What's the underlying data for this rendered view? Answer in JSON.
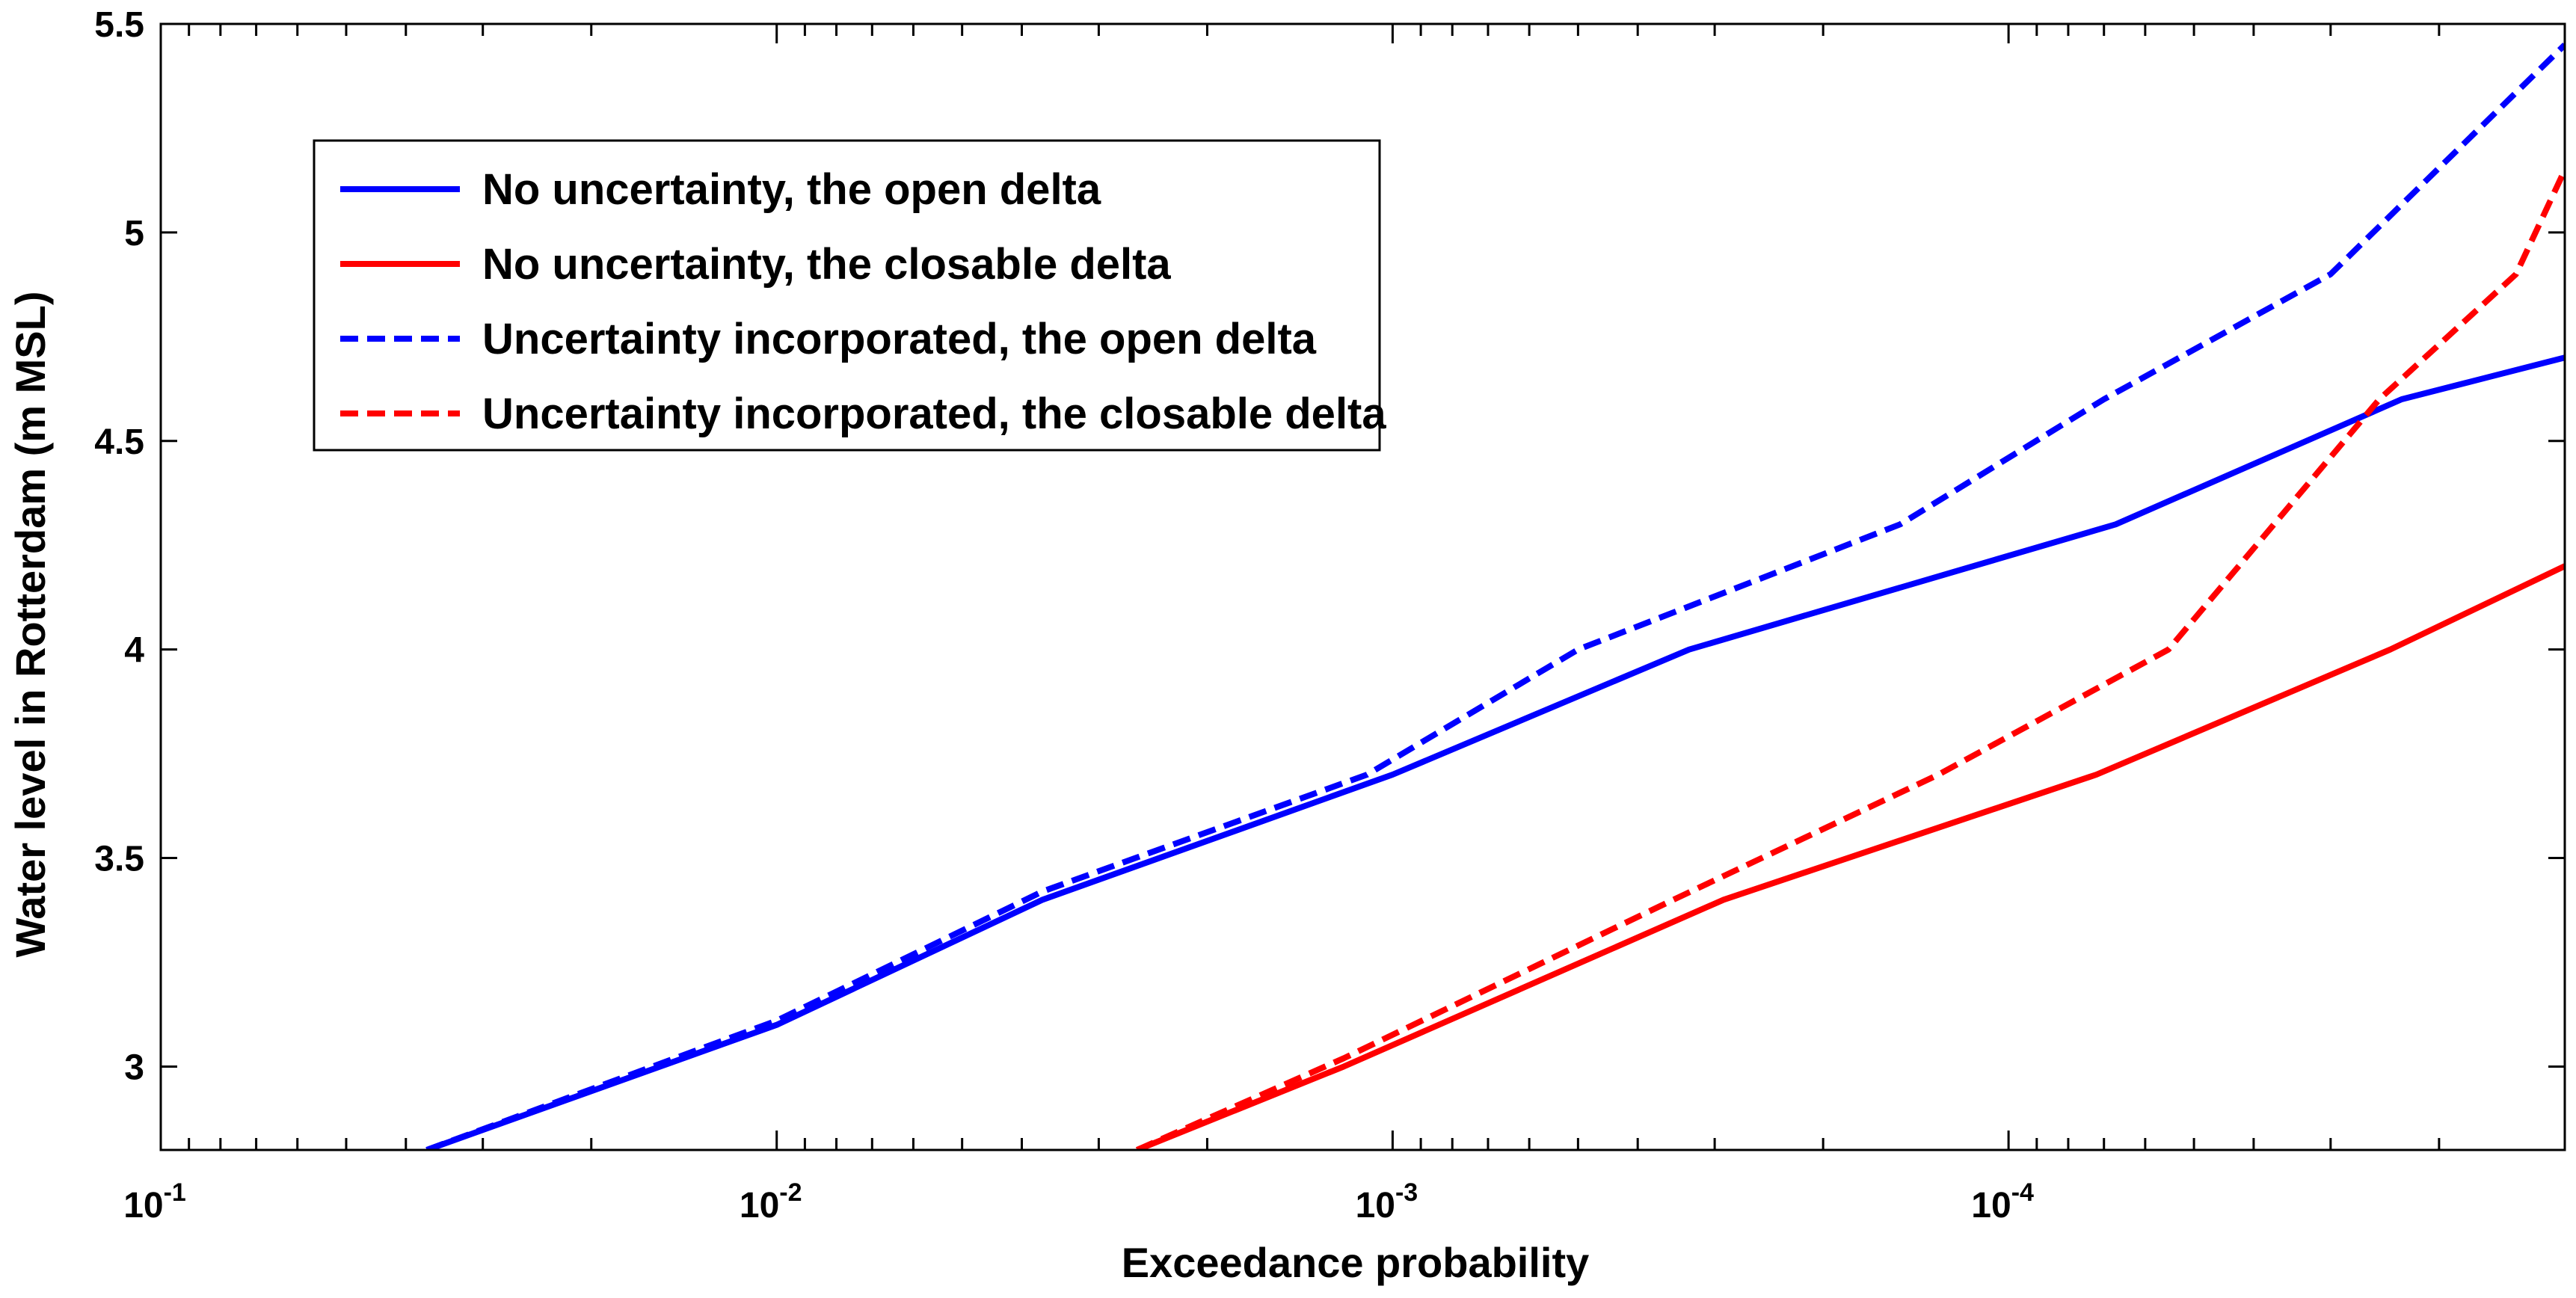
{
  "chart_data": {
    "type": "line",
    "title": "",
    "xlabel": "Exceedance probability",
    "ylabel": "Water level in Rotterdam (m MSL)",
    "x_scale": "log",
    "x_direction": "decreasing",
    "xlim": [
      0.1,
      1.25e-05
    ],
    "ylim": [
      2.8,
      5.5
    ],
    "x_ticks": [
      {
        "value": 0.1,
        "base": "10",
        "exp": "-1"
      },
      {
        "value": 0.01,
        "base": "10",
        "exp": "-2"
      },
      {
        "value": 0.001,
        "base": "10",
        "exp": "-3"
      },
      {
        "value": 0.0001,
        "base": "10",
        "exp": "-4"
      }
    ],
    "y_ticks": [
      {
        "value": 3,
        "label": "3"
      },
      {
        "value": 3.5,
        "label": "3.5"
      },
      {
        "value": 4,
        "label": "4"
      },
      {
        "value": 4.5,
        "label": "4.5"
      },
      {
        "value": 5,
        "label": "5"
      },
      {
        "value": 5.5,
        "label": "5.5"
      }
    ],
    "grid": false,
    "legend_position": "top-left",
    "series": [
      {
        "name": "No uncertainty, the open delta",
        "color": "#0000ff",
        "style": "solid",
        "x": [
          0.037,
          0.01,
          0.0037,
          0.001,
          0.00033,
          6.7e-05,
          2.3e-05,
          1.25e-05
        ],
        "y": [
          2.8,
          3.1,
          3.4,
          3.7,
          4.0,
          4.3,
          4.6,
          4.7
        ]
      },
      {
        "name": "No uncertainty, the closable delta",
        "color": "#ff0000",
        "style": "solid",
        "x": [
          0.0026,
          0.0012,
          0.00029,
          7.2e-05,
          2.4e-05,
          1.25e-05
        ],
        "y": [
          2.8,
          3.0,
          3.4,
          3.7,
          4.0,
          4.2
        ]
      },
      {
        "name": "Uncertainty incorporated, the open delta",
        "color": "#0000ff",
        "style": "dashed",
        "x": [
          0.037,
          0.01,
          0.0037,
          0.0011,
          0.0005,
          0.00015,
          7e-05,
          3e-05,
          1.25e-05
        ],
        "y": [
          2.8,
          3.11,
          3.42,
          3.7,
          4.0,
          4.3,
          4.6,
          4.9,
          5.45
        ]
      },
      {
        "name": "Uncertainty incorporated, the closable delta",
        "color": "#ff0000",
        "style": "dashed",
        "x": [
          0.0026,
          0.0012,
          0.00035,
          0.00013,
          5.5e-05,
          2.5e-05,
          1.5e-05,
          1.25e-05
        ],
        "y": [
          2.8,
          3.02,
          3.4,
          3.7,
          4.0,
          4.6,
          4.9,
          5.15
        ]
      }
    ]
  }
}
